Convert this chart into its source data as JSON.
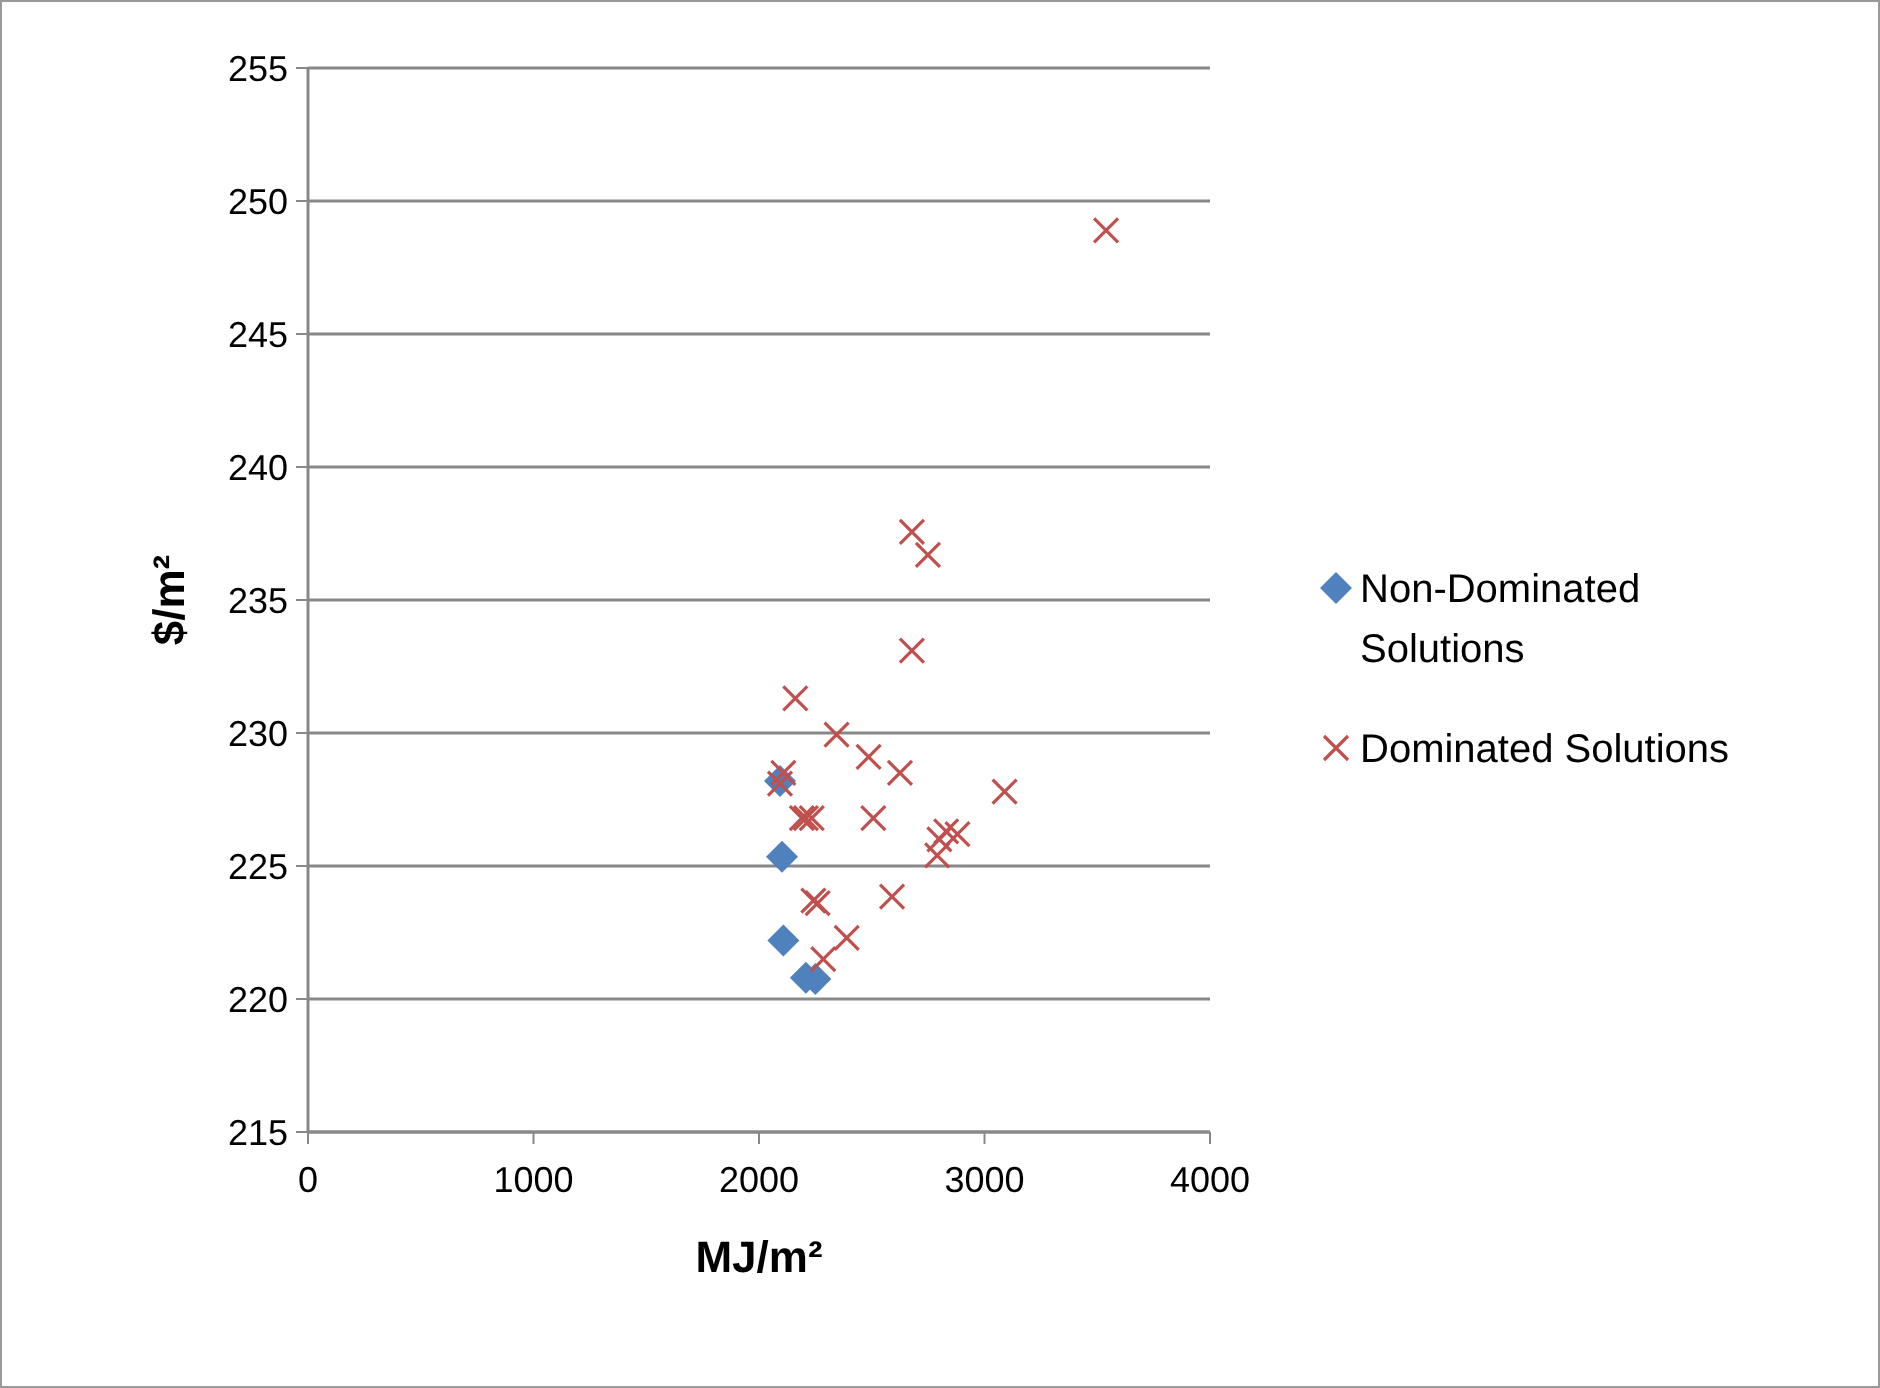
{
  "chart_data": {
    "type": "scatter",
    "xlabel": "MJ/m²",
    "ylabel": "$/m²",
    "xlim": [
      0,
      4000
    ],
    "xticks": [
      0,
      1000,
      2000,
      3000,
      4000
    ],
    "ylim": [
      215,
      255
    ],
    "yticks": [
      215,
      220,
      225,
      230,
      235,
      240,
      245,
      250,
      255
    ],
    "grid": "y",
    "legend": "right",
    "series": [
      {
        "name": "Non-Dominated Solutions",
        "color": "#4f81bd",
        "marker": "diamond",
        "x": [
          2093,
          2102,
          2108,
          2208,
          2250
        ],
        "values": [
          228.2,
          225.35,
          222.2,
          220.8,
          220.75
        ]
      },
      {
        "name": "Dominated Solutions",
        "color": "#c0504d",
        "marker": "cross",
        "x": [
          2678,
          2749,
          2678,
          2161,
          2344,
          2486,
          2625,
          3089,
          2108,
          2093,
          2190,
          2208,
          2234,
          2507,
          2830,
          2880,
          2800,
          2790,
          2241,
          2260,
          2590,
          2389,
          2285,
          3539
        ],
        "values": [
          237.56,
          236.7,
          233.1,
          231.3,
          229.94,
          229.1,
          228.5,
          227.8,
          228.5,
          228.1,
          226.8,
          226.8,
          226.8,
          226.8,
          226.3,
          226.2,
          226.0,
          225.4,
          223.7,
          223.6,
          223.85,
          222.3,
          221.5,
          248.9
        ]
      }
    ]
  }
}
